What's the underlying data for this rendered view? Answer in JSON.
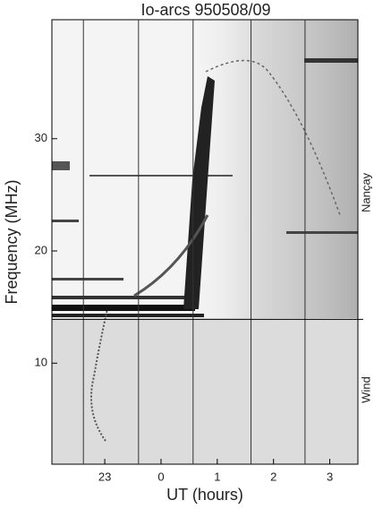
{
  "chart_data": {
    "type": "spectrogram",
    "title": "Io-arcs  950508/09",
    "xlabel": "UT (hours)",
    "ylabel": "Frequency (MHz)",
    "xlim": [
      -1.94,
      3.5
    ],
    "xticks": [
      {
        "value": -1,
        "label": "23"
      },
      0,
      1,
      2,
      3
    ],
    "ylim": [
      1,
      40.6
    ],
    "yticks": [
      10,
      20,
      30
    ],
    "vlines": [
      -1.38,
      -0.4,
      0.57,
      1.6,
      2.56
    ],
    "boundary": 13.9,
    "regions": [
      {
        "name": "Nançay"
      },
      {
        "name": "Wind"
      }
    ],
    "grid": false
  }
}
